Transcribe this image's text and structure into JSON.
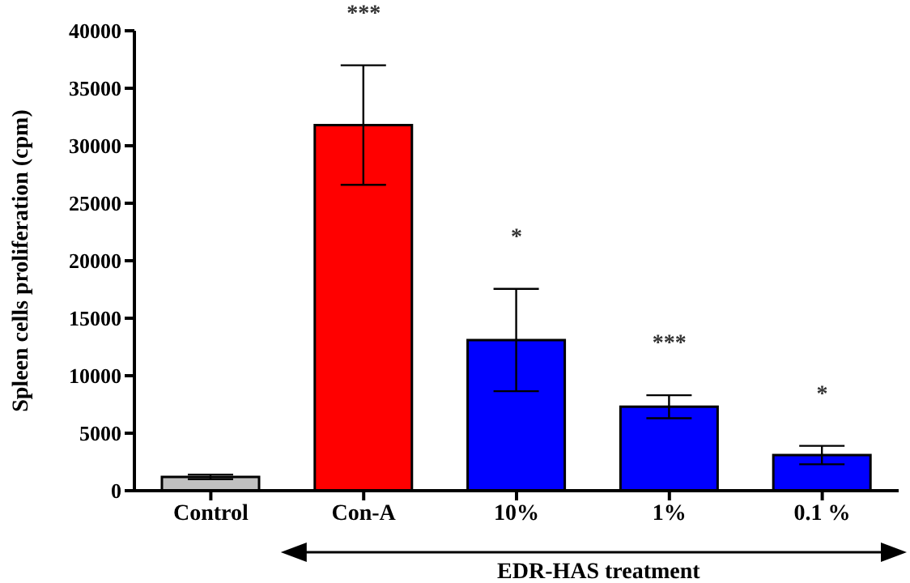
{
  "chart_data": {
    "type": "bar",
    "ylabel": "Spleen cells proliferation (cpm)",
    "xlabel": "EDR-HAS treatment",
    "categories": [
      "Control",
      "Con-A",
      "10%",
      "1%",
      "0.1 %"
    ],
    "values": [
      1200,
      31800,
      13100,
      7300,
      3100
    ],
    "errors": [
      200,
      5200,
      4450,
      1000,
      800
    ],
    "colors": [
      "#c0c0c0",
      "#ff0000",
      "#0000ff",
      "#0000ff",
      "#0000ff"
    ],
    "ylim": [
      0,
      40000
    ],
    "yticks": [
      0,
      5000,
      10000,
      15000,
      20000,
      25000,
      30000,
      35000,
      40000
    ],
    "annotations": [
      "***",
      "*",
      "***",
      "*"
    ]
  }
}
